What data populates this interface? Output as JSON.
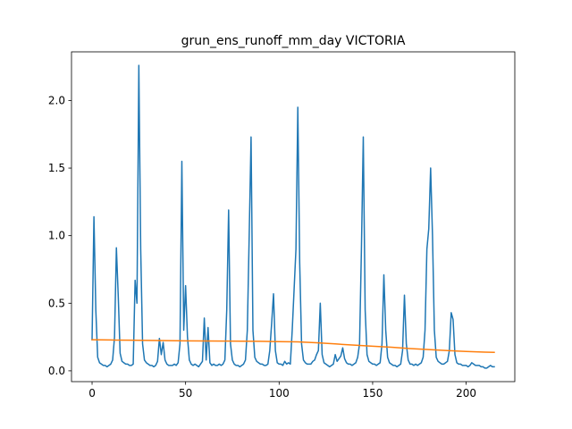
{
  "chart_data": {
    "type": "line",
    "title": "grun_ens_runoff_mm_day VICTORIA",
    "xlabel": "",
    "ylabel": "",
    "xlim": [
      -11,
      226
    ],
    "ylim": [
      -0.08,
      2.36
    ],
    "xticks": [
      0,
      50,
      100,
      150,
      200
    ],
    "yticks": [
      0.0,
      0.5,
      1.0,
      1.5,
      2.0
    ],
    "xtick_labels": [
      "0",
      "50",
      "100",
      "150",
      "200"
    ],
    "ytick_labels": [
      "0.0",
      "0.5",
      "1.0",
      "1.5",
      "2.0"
    ],
    "grid": false,
    "legend": "none",
    "series": [
      {
        "color": "#1f77b4",
        "points": [
          [
            0,
            0.23
          ],
          [
            1,
            1.14
          ],
          [
            2,
            0.45
          ],
          [
            3,
            0.1
          ],
          [
            4,
            0.06
          ],
          [
            5,
            0.05
          ],
          [
            6,
            0.04
          ],
          [
            7,
            0.04
          ],
          [
            8,
            0.03
          ],
          [
            9,
            0.04
          ],
          [
            10,
            0.05
          ],
          [
            11,
            0.08
          ],
          [
            12,
            0.25
          ],
          [
            13,
            0.91
          ],
          [
            14,
            0.55
          ],
          [
            15,
            0.13
          ],
          [
            16,
            0.07
          ],
          [
            17,
            0.06
          ],
          [
            18,
            0.05
          ],
          [
            19,
            0.05
          ],
          [
            20,
            0.04
          ],
          [
            21,
            0.04
          ],
          [
            22,
            0.05
          ],
          [
            23,
            0.67
          ],
          [
            24,
            0.5
          ],
          [
            25,
            2.26
          ],
          [
            26,
            0.9
          ],
          [
            27,
            0.2
          ],
          [
            28,
            0.08
          ],
          [
            29,
            0.06
          ],
          [
            30,
            0.05
          ],
          [
            31,
            0.04
          ],
          [
            32,
            0.04
          ],
          [
            33,
            0.03
          ],
          [
            34,
            0.04
          ],
          [
            35,
            0.07
          ],
          [
            36,
            0.24
          ],
          [
            37,
            0.12
          ],
          [
            38,
            0.21
          ],
          [
            39,
            0.08
          ],
          [
            40,
            0.05
          ],
          [
            41,
            0.04
          ],
          [
            42,
            0.04
          ],
          [
            43,
            0.04
          ],
          [
            44,
            0.05
          ],
          [
            45,
            0.04
          ],
          [
            46,
            0.06
          ],
          [
            47,
            0.2
          ],
          [
            48,
            1.55
          ],
          [
            49,
            0.3
          ],
          [
            50,
            0.63
          ],
          [
            51,
            0.25
          ],
          [
            52,
            0.08
          ],
          [
            53,
            0.05
          ],
          [
            54,
            0.04
          ],
          [
            55,
            0.05
          ],
          [
            56,
            0.04
          ],
          [
            57,
            0.03
          ],
          [
            58,
            0.05
          ],
          [
            59,
            0.07
          ],
          [
            60,
            0.39
          ],
          [
            61,
            0.08
          ],
          [
            62,
            0.32
          ],
          [
            63,
            0.06
          ],
          [
            64,
            0.04
          ],
          [
            65,
            0.05
          ],
          [
            66,
            0.04
          ],
          [
            67,
            0.04
          ],
          [
            68,
            0.05
          ],
          [
            69,
            0.04
          ],
          [
            70,
            0.05
          ],
          [
            71,
            0.08
          ],
          [
            72,
            0.45
          ],
          [
            73,
            1.19
          ],
          [
            74,
            0.2
          ],
          [
            75,
            0.08
          ],
          [
            76,
            0.05
          ],
          [
            77,
            0.04
          ],
          [
            78,
            0.04
          ],
          [
            79,
            0.03
          ],
          [
            80,
            0.04
          ],
          [
            81,
            0.05
          ],
          [
            82,
            0.08
          ],
          [
            83,
            0.3
          ],
          [
            84,
            1.0
          ],
          [
            85,
            1.73
          ],
          [
            86,
            0.3
          ],
          [
            87,
            0.1
          ],
          [
            88,
            0.07
          ],
          [
            89,
            0.06
          ],
          [
            90,
            0.05
          ],
          [
            91,
            0.05
          ],
          [
            92,
            0.04
          ],
          [
            93,
            0.04
          ],
          [
            94,
            0.05
          ],
          [
            95,
            0.15
          ],
          [
            96,
            0.35
          ],
          [
            97,
            0.57
          ],
          [
            98,
            0.15
          ],
          [
            99,
            0.06
          ],
          [
            100,
            0.05
          ],
          [
            101,
            0.05
          ],
          [
            102,
            0.04
          ],
          [
            103,
            0.07
          ],
          [
            104,
            0.05
          ],
          [
            105,
            0.06
          ],
          [
            106,
            0.05
          ],
          [
            107,
            0.3
          ],
          [
            108,
            0.6
          ],
          [
            109,
            0.9
          ],
          [
            110,
            1.95
          ],
          [
            111,
            0.8
          ],
          [
            112,
            0.2
          ],
          [
            113,
            0.08
          ],
          [
            114,
            0.06
          ],
          [
            115,
            0.05
          ],
          [
            116,
            0.05
          ],
          [
            117,
            0.05
          ],
          [
            118,
            0.07
          ],
          [
            119,
            0.08
          ],
          [
            120,
            0.12
          ],
          [
            121,
            0.15
          ],
          [
            122,
            0.5
          ],
          [
            123,
            0.12
          ],
          [
            124,
            0.06
          ],
          [
            125,
            0.05
          ],
          [
            126,
            0.04
          ],
          [
            127,
            0.03
          ],
          [
            128,
            0.04
          ],
          [
            129,
            0.05
          ],
          [
            130,
            0.12
          ],
          [
            131,
            0.07
          ],
          [
            132,
            0.09
          ],
          [
            133,
            0.11
          ],
          [
            134,
            0.17
          ],
          [
            135,
            0.09
          ],
          [
            136,
            0.06
          ],
          [
            137,
            0.05
          ],
          [
            138,
            0.05
          ],
          [
            139,
            0.04
          ],
          [
            140,
            0.05
          ],
          [
            141,
            0.06
          ],
          [
            142,
            0.1
          ],
          [
            143,
            0.2
          ],
          [
            144,
            0.9
          ],
          [
            145,
            1.73
          ],
          [
            146,
            0.45
          ],
          [
            147,
            0.12
          ],
          [
            148,
            0.07
          ],
          [
            149,
            0.06
          ],
          [
            150,
            0.05
          ],
          [
            151,
            0.05
          ],
          [
            152,
            0.04
          ],
          [
            153,
            0.05
          ],
          [
            154,
            0.06
          ],
          [
            155,
            0.2
          ],
          [
            156,
            0.71
          ],
          [
            157,
            0.3
          ],
          [
            158,
            0.1
          ],
          [
            159,
            0.06
          ],
          [
            160,
            0.05
          ],
          [
            161,
            0.04
          ],
          [
            162,
            0.04
          ],
          [
            163,
            0.03
          ],
          [
            164,
            0.04
          ],
          [
            165,
            0.05
          ],
          [
            166,
            0.15
          ],
          [
            167,
            0.56
          ],
          [
            168,
            0.2
          ],
          [
            169,
            0.08
          ],
          [
            170,
            0.05
          ],
          [
            171,
            0.05
          ],
          [
            172,
            0.04
          ],
          [
            173,
            0.05
          ],
          [
            174,
            0.04
          ],
          [
            175,
            0.05
          ],
          [
            176,
            0.06
          ],
          [
            177,
            0.1
          ],
          [
            178,
            0.3
          ],
          [
            179,
            0.9
          ],
          [
            180,
            1.05
          ],
          [
            181,
            1.5
          ],
          [
            182,
            1.0
          ],
          [
            183,
            0.3
          ],
          [
            184,
            0.1
          ],
          [
            185,
            0.07
          ],
          [
            186,
            0.06
          ],
          [
            187,
            0.05
          ],
          [
            188,
            0.05
          ],
          [
            189,
            0.06
          ],
          [
            190,
            0.07
          ],
          [
            191,
            0.15
          ],
          [
            192,
            0.43
          ],
          [
            193,
            0.38
          ],
          [
            194,
            0.12
          ],
          [
            195,
            0.06
          ],
          [
            196,
            0.05
          ],
          [
            197,
            0.05
          ],
          [
            198,
            0.04
          ],
          [
            199,
            0.04
          ],
          [
            200,
            0.04
          ],
          [
            201,
            0.03
          ],
          [
            202,
            0.04
          ],
          [
            203,
            0.06
          ],
          [
            204,
            0.05
          ],
          [
            205,
            0.04
          ],
          [
            206,
            0.04
          ],
          [
            207,
            0.04
          ],
          [
            208,
            0.03
          ],
          [
            209,
            0.03
          ],
          [
            210,
            0.02
          ],
          [
            211,
            0.02
          ],
          [
            212,
            0.03
          ],
          [
            213,
            0.04
          ],
          [
            214,
            0.03
          ],
          [
            215,
            0.03
          ]
        ]
      },
      {
        "color": "#ff7f0e",
        "points": [
          [
            0,
            0.23
          ],
          [
            10,
            0.228
          ],
          [
            20,
            0.227
          ],
          [
            30,
            0.225
          ],
          [
            40,
            0.223
          ],
          [
            50,
            0.222
          ],
          [
            60,
            0.221
          ],
          [
            70,
            0.22
          ],
          [
            80,
            0.219
          ],
          [
            90,
            0.218
          ],
          [
            100,
            0.216
          ],
          [
            110,
            0.214
          ],
          [
            120,
            0.208
          ],
          [
            130,
            0.199
          ],
          [
            140,
            0.19
          ],
          [
            150,
            0.182
          ],
          [
            160,
            0.175
          ],
          [
            170,
            0.165
          ],
          [
            180,
            0.157
          ],
          [
            190,
            0.15
          ],
          [
            200,
            0.143
          ],
          [
            210,
            0.138
          ],
          [
            215,
            0.137
          ]
        ]
      }
    ]
  }
}
